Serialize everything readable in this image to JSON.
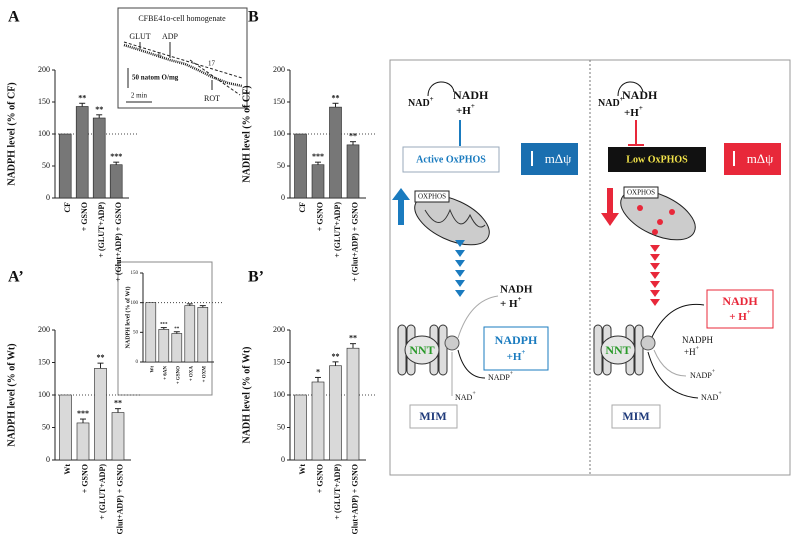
{
  "chart_data": [
    {
      "type": "bar",
      "panel": "A",
      "ylabel": "NADPH  level (% of CF)",
      "categories": [
        "CF",
        "+ GSNO",
        "+ (GLUT+ADP)",
        "+ (Glut+ADP) + GSNO"
      ],
      "values": [
        100,
        143,
        125,
        52
      ],
      "errors": [
        null,
        5,
        5,
        4
      ],
      "significance": [
        null,
        "**",
        "**",
        "***"
      ],
      "color": "#777777",
      "ylim": [
        0,
        200
      ],
      "yticks": [
        0,
        50,
        100,
        150,
        200
      ],
      "reference_line": 100
    },
    {
      "type": "bar",
      "panel": "B",
      "ylabel": "NADH  level (% of CF)",
      "categories": [
        "CF",
        "+ GSNO",
        "+ (GLUT+ADP)",
        "+ (Glut+ADP) + GSNO"
      ],
      "values": [
        100,
        52,
        142,
        83
      ],
      "errors": [
        null,
        4,
        6,
        5
      ],
      "significance": [
        null,
        "***",
        "**",
        "**"
      ],
      "color": "#777777",
      "ylim": [
        0,
        200
      ],
      "yticks": [
        0,
        50,
        100,
        150,
        200
      ],
      "reference_line": 100
    },
    {
      "type": "bar",
      "panel": "A’",
      "ylabel": "NADPH  level (% of Wt)",
      "categories": [
        "Wt",
        "+ GSNO",
        "+ (GLUT+ADP)",
        "+ (Glut+ADP) + GSNO"
      ],
      "values": [
        100,
        57,
        141,
        73
      ],
      "errors": [
        null,
        6,
        8,
        6
      ],
      "significance": [
        null,
        "***",
        "**",
        "**"
      ],
      "color": "#d9d9d9",
      "ylim": [
        0,
        200
      ],
      "yticks": [
        0,
        50,
        100,
        150,
        200
      ],
      "reference_line": 100
    },
    {
      "type": "bar",
      "ylabel": "NADPH level (% of Wt)",
      "categories": [
        "Wt",
        "+ 6AN",
        "+ GSNO",
        "+ OXA",
        "+ OXM"
      ],
      "values": [
        100,
        55,
        48,
        95,
        92
      ],
      "errors": [
        null,
        3,
        3,
        3,
        3
      ],
      "significance": [
        null,
        "***",
        "**",
        null,
        null
      ],
      "color": "#d9d9d9",
      "ylim": [
        0,
        150
      ],
      "yticks": [
        0,
        50,
        100,
        150
      ],
      "reference_line": 100
    },
    {
      "type": "bar",
      "panel": "B’",
      "ylabel": "NADH  level (% of Wt)",
      "categories": [
        "Wt",
        "+ GSNO",
        "+ (GLUT+ADP)",
        "+ (Glut+ADP) + GSNO"
      ],
      "values": [
        100,
        120,
        145,
        172
      ],
      "errors": [
        null,
        7,
        6,
        7
      ],
      "significance": [
        null,
        "*",
        "**",
        "**"
      ],
      "color": "#d9d9d9",
      "ylim": [
        0,
        200
      ],
      "yticks": [
        0,
        50,
        100,
        150,
        200
      ],
      "reference_line": 100
    }
  ],
  "inset": {
    "title": "CFBE41o-cell homogenate",
    "glut": "GLUT",
    "adp": "ADP",
    "rate1": "6",
    "rate2": "17",
    "rot": "ROT",
    "scale_y": "50 natom O/mg",
    "scale_x": "2 min"
  },
  "diagram": {
    "left": {
      "nad": "NAD",
      "nad_sup": "+",
      "nadh": "NADH",
      "h": "+H",
      "h_sup": "+",
      "box": "Active OxPHOS",
      "mdp": "mΔψ",
      "oxphos": "OXPHOS",
      "nadh2": "NADH",
      "h2": "+ H",
      "h2_sup": "+",
      "nnt": "NNT",
      "nadph": "NADPH",
      "h3": "+H",
      "h3_sup": "+",
      "nadp": "NADP",
      "nadp_sup": "+",
      "nad2": "NAD",
      "nad2_sup": "+",
      "mim": "MIM"
    },
    "right": {
      "nad": "NAD",
      "nad_sup": "+",
      "nadh": "NADH",
      "h": "+H",
      "h_sup": "+",
      "box": "Low OxPHOS",
      "mdp": "mΔψ",
      "oxphos": "OXPHOS",
      "nadh2": "NADH",
      "h2": "+ H",
      "h2_sup": "+",
      "nnt": "NNT",
      "nadph": "NADPH",
      "h3": "+H",
      "h3_sup": "+",
      "nadp": "NADP",
      "nadp_sup": "+",
      "nad2": "NAD",
      "nad2_sup": "+",
      "mim": "MIM"
    }
  }
}
